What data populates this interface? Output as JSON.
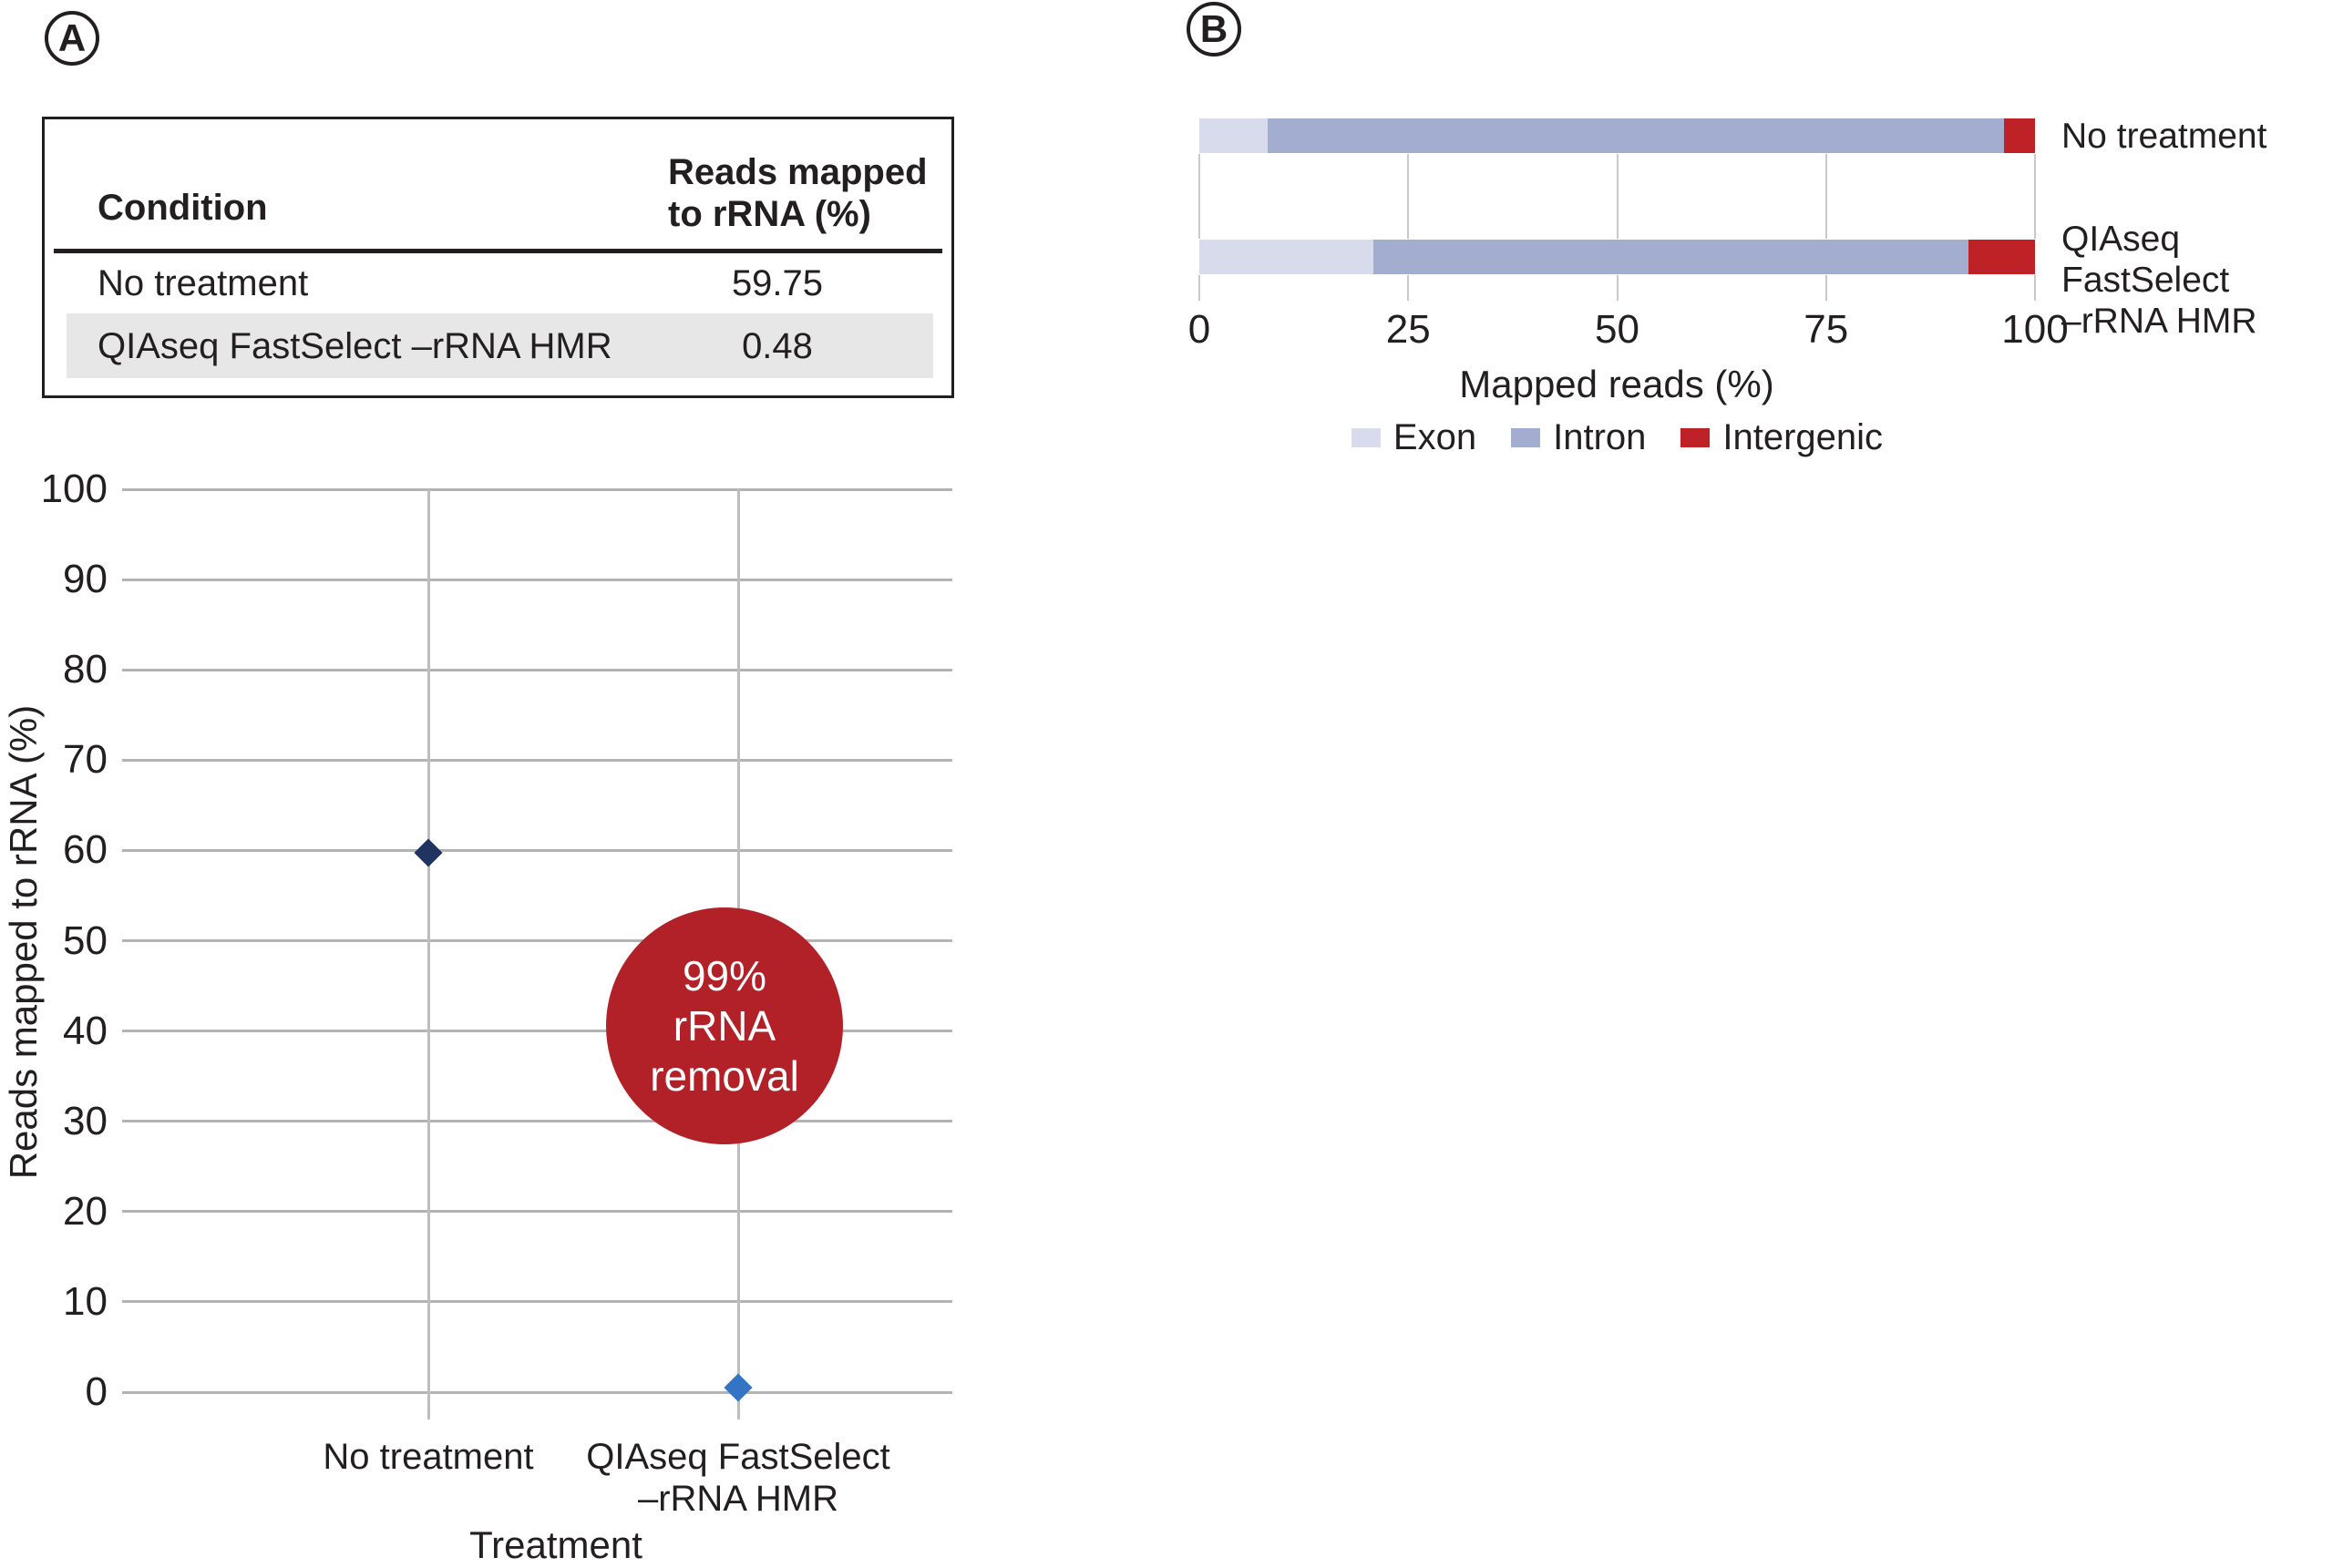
{
  "panel_a": {
    "label": "A",
    "table": {
      "header_condition": "Condition",
      "header_value": "Reads mapped\nto rRNA (%)",
      "rows": [
        {
          "condition": "No treatment",
          "value": "59.75"
        },
        {
          "condition": "QIAseq FastSelect –rRNA HMR",
          "value": "0.48"
        }
      ],
      "highlight_color": "#e7e7e7"
    }
  },
  "panel_b": {
    "label": "B",
    "bar_labels": [
      "No treatment",
      "QIAseq FastSelect\n–rRNA HMR"
    ]
  },
  "chart_data": [
    {
      "type": "scatter",
      "panel": "A",
      "categories": [
        "No treatment",
        "QIAseq FastSelect –rRNA HMR"
      ],
      "display_categories": [
        "No treatment",
        "QIAseq FastSelect\n–rRNA HMR"
      ],
      "values": [
        59.75,
        0.48
      ],
      "point_colors": [
        "#1f3460",
        "#3474c4"
      ],
      "marker": "diamond",
      "xlabel": "Treatment",
      "ylabel": "Reads mapped to rRNA (%)",
      "ylim": [
        0,
        100
      ],
      "yticks": [
        0,
        10,
        20,
        30,
        40,
        50,
        60,
        70,
        80,
        90,
        100
      ],
      "grid": true,
      "annotation": {
        "text": "99%\nrRNA\nremoval",
        "color": "#b22128",
        "text_color": "#ffffff"
      }
    },
    {
      "type": "bar",
      "panel": "B",
      "orientation": "horizontal",
      "stacked": true,
      "categories": [
        "No treatment",
        "QIAseq FastSelect –rRNA HMR"
      ],
      "series": [
        {
          "name": "Exon",
          "color": "#d8dbeb",
          "values": [
            8.2,
            20.8
          ]
        },
        {
          "name": "Intron",
          "color": "#a3adcf",
          "values": [
            88.1,
            71.2
          ]
        },
        {
          "name": "Intergenic",
          "color": "#be2126",
          "values": [
            3.7,
            8.0
          ]
        }
      ],
      "xlabel": "Mapped reads (%)",
      "xlim": [
        0,
        100
      ],
      "xticks": [
        0,
        25,
        50,
        75,
        100
      ],
      "legend": [
        "Exon",
        "Intron",
        "Intergenic"
      ],
      "legend_position": "bottom",
      "grid": true
    }
  ]
}
